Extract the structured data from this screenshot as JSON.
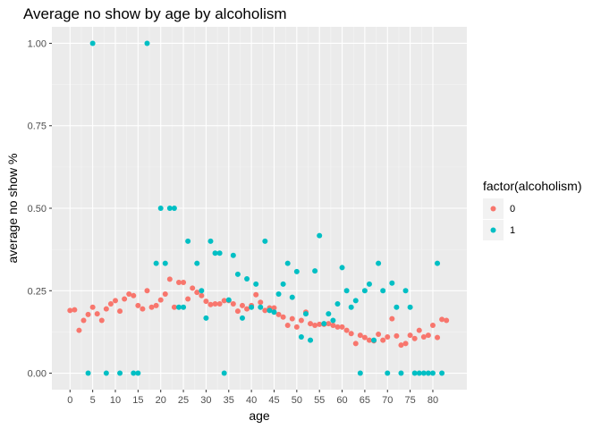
{
  "chart_data": {
    "type": "scatter",
    "title": "Average no show by age by alcoholism",
    "xlabel": "age",
    "ylabel": "average no show %",
    "xlim": [
      -4,
      87.5
    ],
    "ylim": [
      -0.05,
      1.05
    ],
    "x_ticks": [
      0,
      5,
      10,
      15,
      20,
      25,
      30,
      35,
      40,
      45,
      50,
      55,
      60,
      65,
      70,
      75,
      80
    ],
    "y_ticks": [
      0.0,
      0.25,
      0.5,
      0.75,
      1.0
    ],
    "y_tick_labels": [
      "0.00",
      "0.25",
      "0.50",
      "0.75",
      "1.00"
    ],
    "grid": true,
    "legend": {
      "title": "factor(alcoholism)",
      "placement": "right"
    },
    "series": [
      {
        "name": "0",
        "color": "#F8766D",
        "points": [
          [
            0,
            0.19
          ],
          [
            1,
            0.192
          ],
          [
            2,
            0.13
          ],
          [
            3,
            0.16
          ],
          [
            4,
            0.178
          ],
          [
            5,
            0.2
          ],
          [
            6,
            0.18
          ],
          [
            7,
            0.16
          ],
          [
            8,
            0.195
          ],
          [
            9,
            0.21
          ],
          [
            10,
            0.22
          ],
          [
            11,
            0.188
          ],
          [
            12,
            0.225
          ],
          [
            13,
            0.24
          ],
          [
            14,
            0.235
          ],
          [
            15,
            0.205
          ],
          [
            16,
            0.195
          ],
          [
            17,
            0.25
          ],
          [
            18,
            0.2
          ],
          [
            19,
            0.205
          ],
          [
            20,
            0.222
          ],
          [
            21,
            0.24
          ],
          [
            22,
            0.285
          ],
          [
            23,
            0.2
          ],
          [
            24,
            0.275
          ],
          [
            25,
            0.275
          ],
          [
            26,
            0.225
          ],
          [
            27,
            0.258
          ],
          [
            28,
            0.245
          ],
          [
            29,
            0.235
          ],
          [
            30,
            0.218
          ],
          [
            31,
            0.208
          ],
          [
            32,
            0.21
          ],
          [
            33,
            0.21
          ],
          [
            34,
            0.22
          ],
          [
            35,
            0.22
          ],
          [
            36,
            0.21
          ],
          [
            37,
            0.188
          ],
          [
            38,
            0.205
          ],
          [
            39,
            0.195
          ],
          [
            40,
            0.205
          ],
          [
            41,
            0.238
          ],
          [
            42,
            0.215
          ],
          [
            43,
            0.19
          ],
          [
            44,
            0.198
          ],
          [
            45,
            0.198
          ],
          [
            46,
            0.178
          ],
          [
            47,
            0.17
          ],
          [
            48,
            0.145
          ],
          [
            49,
            0.165
          ],
          [
            50,
            0.14
          ],
          [
            51,
            0.16
          ],
          [
            52,
            0.185
          ],
          [
            53,
            0.15
          ],
          [
            54,
            0.145
          ],
          [
            55,
            0.148
          ],
          [
            56,
            0.148
          ],
          [
            57,
            0.15
          ],
          [
            58,
            0.145
          ],
          [
            59,
            0.14
          ],
          [
            60,
            0.14
          ],
          [
            61,
            0.13
          ],
          [
            62,
            0.12
          ],
          [
            63,
            0.09
          ],
          [
            64,
            0.115
          ],
          [
            65,
            0.108
          ],
          [
            66,
            0.1
          ],
          [
            67,
            0.098
          ],
          [
            68,
            0.118
          ],
          [
            69,
            0.1
          ],
          [
            70,
            0.11
          ],
          [
            71,
            0.165
          ],
          [
            72,
            0.113
          ],
          [
            73,
            0.085
          ],
          [
            74,
            0.09
          ],
          [
            75,
            0.115
          ],
          [
            76,
            0.105
          ],
          [
            77,
            0.13
          ],
          [
            78,
            0.11
          ],
          [
            79,
            0.115
          ],
          [
            80,
            0.145
          ],
          [
            81,
            0.108
          ],
          [
            82,
            0.163
          ],
          [
            83,
            0.16
          ]
        ]
      },
      {
        "name": "1",
        "color": "#00BFC4",
        "points": [
          [
            4,
            0.0
          ],
          [
            5,
            1.0
          ],
          [
            8,
            0.0
          ],
          [
            11,
            0.0
          ],
          [
            14,
            0.0
          ],
          [
            15,
            0.0
          ],
          [
            17,
            1.0
          ],
          [
            19,
            0.333
          ],
          [
            20,
            0.5
          ],
          [
            21,
            0.333
          ],
          [
            22,
            0.5
          ],
          [
            23,
            0.5
          ],
          [
            24,
            0.2
          ],
          [
            25,
            0.2
          ],
          [
            26,
            0.4
          ],
          [
            28,
            0.333
          ],
          [
            29,
            0.25
          ],
          [
            30,
            0.167
          ],
          [
            31,
            0.4
          ],
          [
            32,
            0.364
          ],
          [
            33,
            0.364
          ],
          [
            34,
            0.0
          ],
          [
            35,
            0.222
          ],
          [
            36,
            0.357
          ],
          [
            37,
            0.3
          ],
          [
            38,
            0.167
          ],
          [
            39,
            0.286
          ],
          [
            40,
            0.2
          ],
          [
            41,
            0.27
          ],
          [
            42,
            0.2
          ],
          [
            43,
            0.4
          ],
          [
            44,
            0.19
          ],
          [
            45,
            0.185
          ],
          [
            46,
            0.24
          ],
          [
            47,
            0.27
          ],
          [
            48,
            0.333
          ],
          [
            49,
            0.23
          ],
          [
            50,
            0.308
          ],
          [
            51,
            0.11
          ],
          [
            52,
            0.18
          ],
          [
            53,
            0.1
          ],
          [
            54,
            0.31
          ],
          [
            55,
            0.417
          ],
          [
            56,
            0.15
          ],
          [
            57,
            0.18
          ],
          [
            58,
            0.16
          ],
          [
            59,
            0.21
          ],
          [
            60,
            0.32
          ],
          [
            61,
            0.25
          ],
          [
            62,
            0.2
          ],
          [
            63,
            0.22
          ],
          [
            64,
            0.0
          ],
          [
            65,
            0.25
          ],
          [
            66,
            0.27
          ],
          [
            67,
            0.1
          ],
          [
            68,
            0.333
          ],
          [
            69,
            0.25
          ],
          [
            70,
            0.0
          ],
          [
            71,
            0.273
          ],
          [
            72,
            0.2
          ],
          [
            73,
            0.0
          ],
          [
            74,
            0.25
          ],
          [
            75,
            0.2
          ],
          [
            76,
            0.0
          ],
          [
            77,
            0.0
          ],
          [
            78,
            0.0
          ],
          [
            79,
            0.0
          ],
          [
            80,
            0.0
          ],
          [
            81,
            0.333
          ],
          [
            82,
            0.0
          ]
        ]
      }
    ]
  }
}
